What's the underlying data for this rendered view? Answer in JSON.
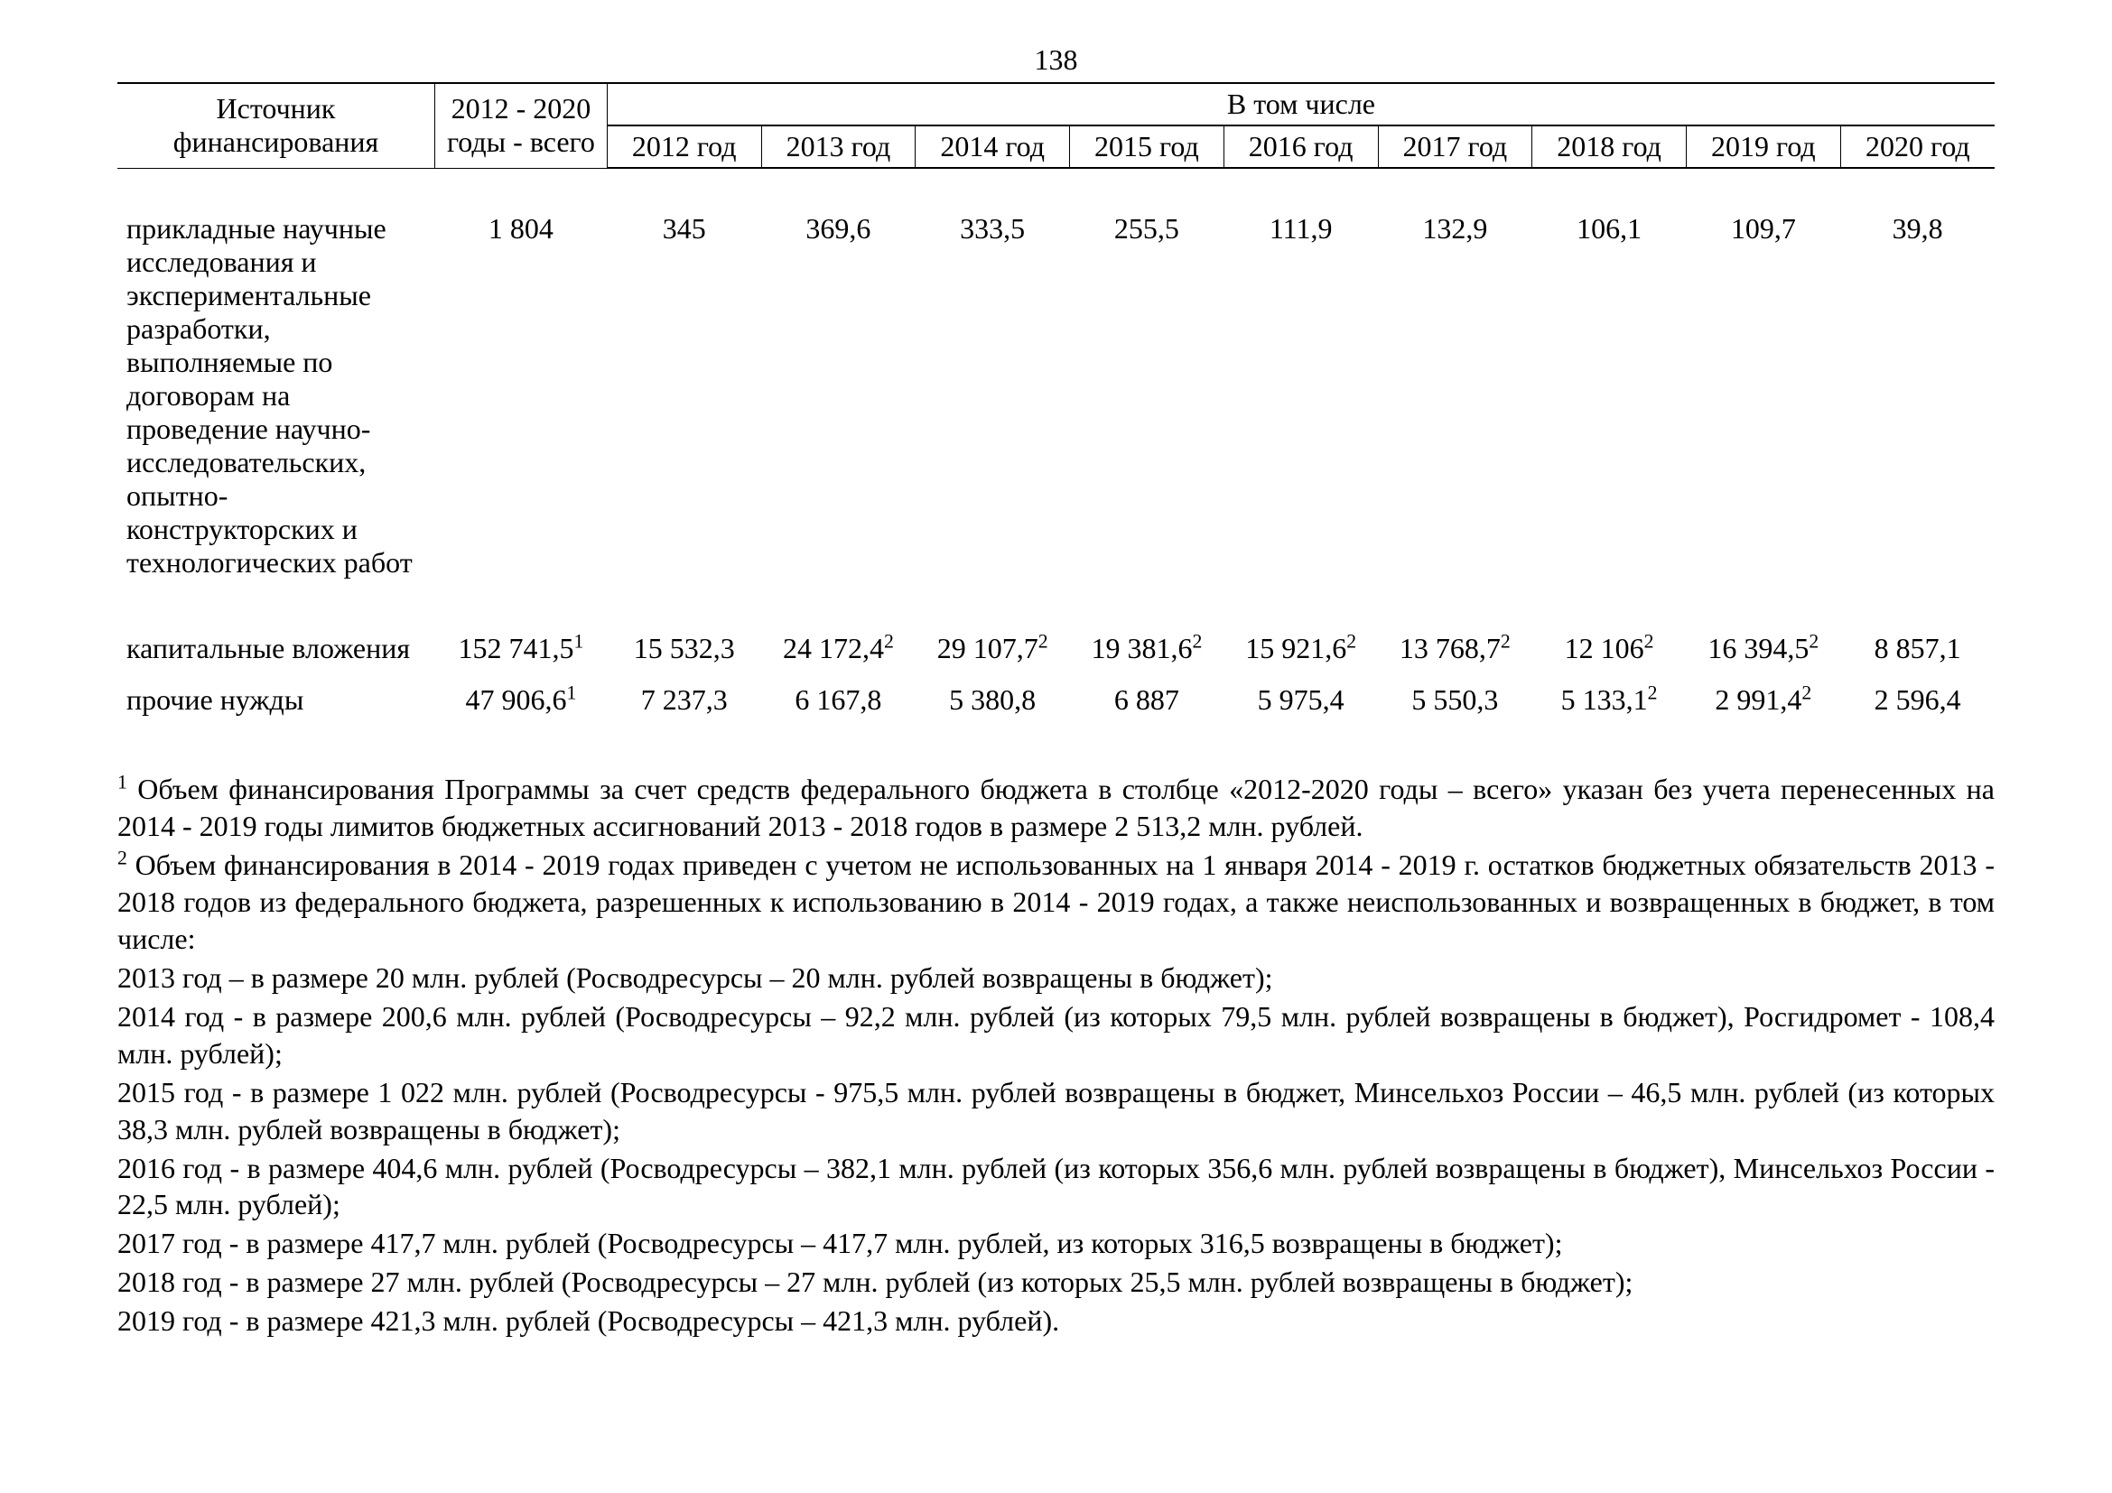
{
  "page_number": "138",
  "styling": {
    "background_color": "#ffffff",
    "text_color": "#000000",
    "font_family": "Times New Roman",
    "body_fontsize_pt": 12,
    "rule_top_weight": 2,
    "rule_mid_weight": 1,
    "rule_bottom_weight": 2
  },
  "table": {
    "type": "table",
    "header": {
      "col_label": "Источник финансирования",
      "col_total": "2012 - 2020 годы - всего",
      "group_title": "В том числе",
      "years": [
        "2012 год",
        "2013 год",
        "2014 год",
        "2015 год",
        "2016 год",
        "2017 год",
        "2018 год",
        "2019 год",
        "2020 год"
      ]
    },
    "rows": [
      {
        "label": "прикладные научные исследования и экспериментальные разработки, выполняемые по договорам на проведение научно-исследовательских, опытно-конструкторских и технологических работ",
        "total": {
          "v": "1 804"
        },
        "cells": [
          {
            "v": "345"
          },
          {
            "v": "369,6"
          },
          {
            "v": "333,5"
          },
          {
            "v": "255,5"
          },
          {
            "v": "111,9"
          },
          {
            "v": "132,9"
          },
          {
            "v": "106,1"
          },
          {
            "v": "109,7"
          },
          {
            "v": "39,8"
          }
        ]
      },
      {
        "label": "капитальные вложения",
        "total": {
          "v": "152 741,5",
          "sup": "1"
        },
        "cells": [
          {
            "v": "15 532,3"
          },
          {
            "v": "24 172,4",
            "sup": "2"
          },
          {
            "v": "29 107,7",
            "sup": "2"
          },
          {
            "v": "19 381,6",
            "sup": "2"
          },
          {
            "v": "15 921,6",
            "sup": "2"
          },
          {
            "v": "13 768,7",
            "sup": "2"
          },
          {
            "v": "12 106",
            "sup": "2"
          },
          {
            "v": "16 394,5",
            "sup": "2"
          },
          {
            "v": "8 857,1"
          }
        ]
      },
      {
        "label": "прочие нужды",
        "total": {
          "v": "47 906,6",
          "sup": "1"
        },
        "cells": [
          {
            "v": "7 237,3"
          },
          {
            "v": "6 167,8"
          },
          {
            "v": "5 380,8"
          },
          {
            "v": "6 887"
          },
          {
            "v": "5 975,4"
          },
          {
            "v": "5 550,3"
          },
          {
            "v": "5 133,1",
            "sup": "2"
          },
          {
            "v": "2 991,4",
            "sup": "2"
          },
          {
            "v": "2 596,4"
          }
        ]
      }
    ]
  },
  "footnotes": {
    "f1": "Объем финансирования Программы за счет средств федерального бюджета в столбце «2012-2020 годы – всего» указан без учета перенесенных на 2014 - 2019 годы лимитов бюджетных ассигнований 2013 - 2018 годов в размере 2 513,2 млн. рублей.",
    "f2_lead": "Объем финансирования в 2014 - 2019 годах приведен с учетом не использованных на 1 января 2014 - 2019 г. остатков бюджетных обязательств 2013 - 2018 годов из федерального бюджета, разрешенных к использованию в 2014 - 2019 годах, а также неиспользованных и возвращенных в бюджет, в том числе:",
    "f2_items": [
      "2013 год – в размере 20 млн. рублей (Росводресурсы – 20 млн. рублей возвращены в бюджет);",
      "2014 год - в размере 200,6 млн. рублей (Росводресурсы – 92,2 млн. рублей (из которых 79,5 млн. рублей возвращены в бюджет), Росгидромет - 108,4 млн. рублей);",
      "2015 год - в размере 1 022 млн. рублей (Росводресурсы - 975,5 млн. рублей возвращены в бюджет, Минсельхоз России – 46,5 млн. рублей (из которых 38,3 млн. рублей возвращены в бюджет);",
      "2016 год - в размере 404,6 млн. рублей (Росводресурсы – 382,1 млн. рублей (из которых 356,6 млн. рублей возвращены в бюджет), Минсельхоз России - 22,5 млн. рублей);",
      "2017 год - в размере 417,7 млн. рублей (Росводресурсы – 417,7 млн. рублей, из которых 316,5 возвращены в бюджет);",
      "2018 год - в размере 27 млн. рублей (Росводресурсы – 27 млн. рублей (из которых 25,5 млн. рублей возвращены в бюджет);",
      "2019 год - в размере 421,3 млн. рублей (Росводресурсы – 421,3 млн. рублей)."
    ]
  }
}
